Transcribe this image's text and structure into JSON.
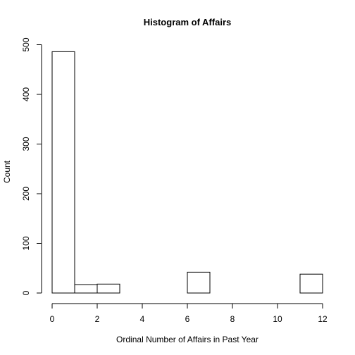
{
  "chart_data": {
    "type": "bar",
    "title": "Histogram of Affairs",
    "xlabel": "Ordinal Number of Affairs in Past Year",
    "ylabel": "Count",
    "bins": [
      {
        "start": 0,
        "end": 1,
        "count": 486
      },
      {
        "start": 1,
        "end": 2,
        "count": 17
      },
      {
        "start": 2,
        "end": 3,
        "count": 18
      },
      {
        "start": 3,
        "end": 4,
        "count": 0
      },
      {
        "start": 4,
        "end": 5,
        "count": 0
      },
      {
        "start": 5,
        "end": 6,
        "count": 0
      },
      {
        "start": 6,
        "end": 7,
        "count": 42
      },
      {
        "start": 7,
        "end": 8,
        "count": 0
      },
      {
        "start": 8,
        "end": 9,
        "count": 0
      },
      {
        "start": 9,
        "end": 10,
        "count": 0
      },
      {
        "start": 10,
        "end": 11,
        "count": 0
      },
      {
        "start": 11,
        "end": 12,
        "count": 38
      }
    ],
    "xlim": [
      0,
      12
    ],
    "ylim": [
      0,
      500
    ],
    "xticks": [
      0,
      2,
      4,
      6,
      8,
      10,
      12
    ],
    "yticks": [
      0,
      100,
      200,
      300,
      400,
      500
    ],
    "grid": false,
    "legend": "none"
  }
}
